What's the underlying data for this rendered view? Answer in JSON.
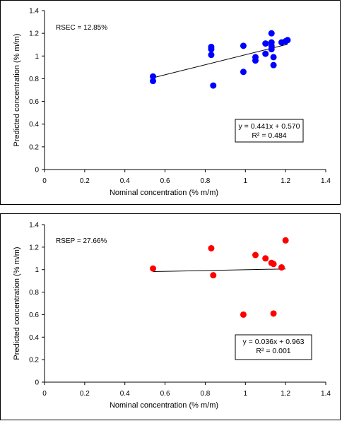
{
  "chart_data": [
    {
      "type": "scatter",
      "xlabel": "Nominal concentration (% m/m)",
      "ylabel": "Predicted concentration (% m/m)",
      "xlim": [
        0,
        1.4
      ],
      "ylim": [
        0,
        1.4
      ],
      "xticks": [
        "0",
        "0.2",
        "0.4",
        "0.6",
        "0.8",
        "1",
        "1.2",
        "1.4"
      ],
      "yticks": [
        "0",
        "0.2",
        "0.4",
        "0.6",
        "0.8",
        "1",
        "1.2",
        "1.4"
      ],
      "grid": false,
      "annotation": "RSEC = 12.85%",
      "equation": "y = 0.441x + 0.570",
      "r2": "R² = 0.484",
      "marker_color": "#0000ff",
      "trendline": {
        "slope": 0.441,
        "intercept": 0.57
      },
      "points": [
        {
          "x": 0.54,
          "y": 0.82
        },
        {
          "x": 0.54,
          "y": 0.78
        },
        {
          "x": 0.83,
          "y": 1.08
        },
        {
          "x": 0.83,
          "y": 1.06
        },
        {
          "x": 0.83,
          "y": 1.01
        },
        {
          "x": 0.84,
          "y": 0.74
        },
        {
          "x": 0.99,
          "y": 1.09
        },
        {
          "x": 0.99,
          "y": 0.86
        },
        {
          "x": 1.05,
          "y": 0.99
        },
        {
          "x": 1.05,
          "y": 0.96
        },
        {
          "x": 1.1,
          "y": 1.02
        },
        {
          "x": 1.1,
          "y": 1.11
        },
        {
          "x": 1.13,
          "y": 1.2
        },
        {
          "x": 1.13,
          "y": 1.12
        },
        {
          "x": 1.13,
          "y": 1.09
        },
        {
          "x": 1.13,
          "y": 1.06
        },
        {
          "x": 1.14,
          "y": 0.99
        },
        {
          "x": 1.14,
          "y": 0.92
        },
        {
          "x": 1.18,
          "y": 1.12
        },
        {
          "x": 1.2,
          "y": 1.13
        },
        {
          "x": 1.21,
          "y": 1.14
        }
      ]
    },
    {
      "type": "scatter",
      "xlabel": "Nominal concentration (% m/m)",
      "ylabel": "Predicted concentration (% m/m)",
      "xlim": [
        0,
        1.4
      ],
      "ylim": [
        0,
        1.4
      ],
      "xticks": [
        "0",
        "0.2",
        "0.4",
        "0.6",
        "0.8",
        "1",
        "1.2",
        "1.4"
      ],
      "yticks": [
        "0",
        "0.2",
        "0.4",
        "0.6",
        "0.8",
        "1",
        "1.2",
        "1.4"
      ],
      "grid": false,
      "annotation": "RSEP = 27.66%",
      "equation": "y = 0.036x + 0.963",
      "r2": "R² = 0.001",
      "marker_color": "#ff0000",
      "trendline": {
        "slope": 0.036,
        "intercept": 0.963
      },
      "points": [
        {
          "x": 0.54,
          "y": 1.01
        },
        {
          "x": 0.83,
          "y": 1.19
        },
        {
          "x": 0.84,
          "y": 0.95
        },
        {
          "x": 0.99,
          "y": 0.6
        },
        {
          "x": 1.05,
          "y": 1.13
        },
        {
          "x": 1.1,
          "y": 1.1
        },
        {
          "x": 1.13,
          "y": 1.06
        },
        {
          "x": 1.14,
          "y": 1.05
        },
        {
          "x": 1.14,
          "y": 0.61
        },
        {
          "x": 1.18,
          "y": 1.02
        },
        {
          "x": 1.2,
          "y": 1.26
        }
      ]
    }
  ]
}
